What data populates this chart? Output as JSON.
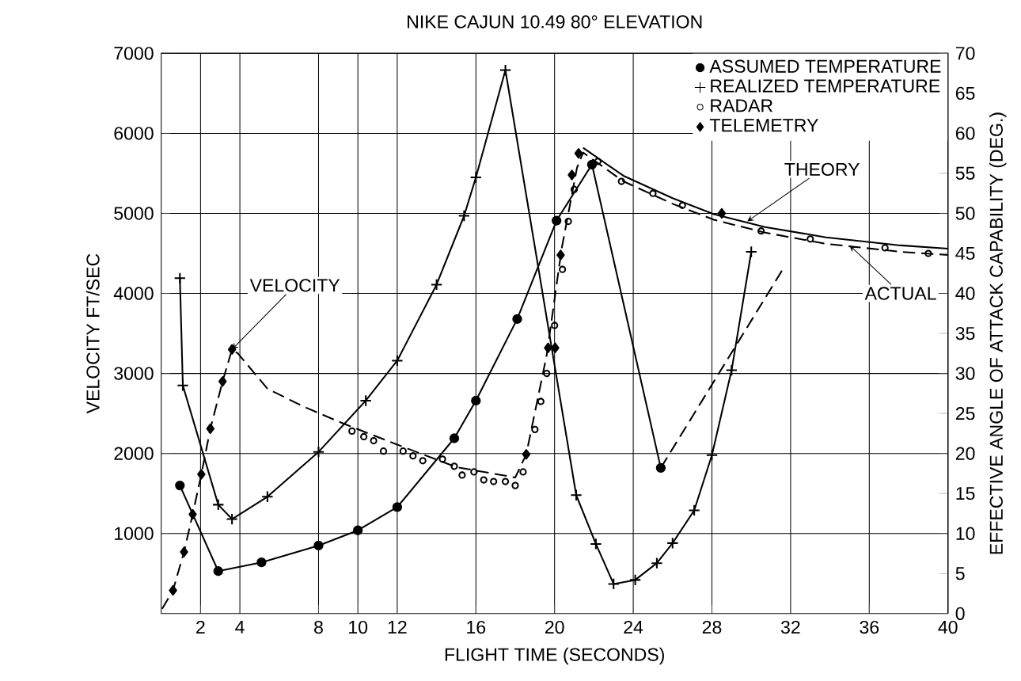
{
  "chart_data": {
    "type": "line",
    "title": "NIKE CAJUN 10.49  80° ELEVATION",
    "xlabel": "FLIGHT TIME (SECONDS)",
    "ylabel": "VELOCITY FT/SEC",
    "y2label": "EFFECTIVE ANGLE OF ATTACK CAPABILITY (DEG.)",
    "xlim": [
      0,
      40
    ],
    "xticks": [
      2,
      4,
      8,
      10,
      12,
      16,
      20,
      24,
      28,
      32,
      36,
      40
    ],
    "ylim": [
      0,
      7000
    ],
    "yticks": [
      1000,
      2000,
      3000,
      4000,
      5000,
      6000,
      7000
    ],
    "y2lim": [
      0,
      70
    ],
    "y2ticks": [
      0,
      5,
      10,
      15,
      20,
      25,
      30,
      35,
      40,
      45,
      50,
      55,
      60,
      65,
      70
    ],
    "grid": true,
    "legend": "top right",
    "annotations": [
      {
        "text": "VELOCITY",
        "x": 3.6,
        "y": 3300
      },
      {
        "text": "THEORY",
        "x": 29.8,
        "y": 4900
      },
      {
        "text": "ACTUAL",
        "x": 35,
        "y": 4600
      }
    ],
    "series": [
      {
        "name": "ASSUMED TEMPERATURE",
        "type": "line",
        "axis": "y2",
        "color": "#000000",
        "marker": "circle",
        "line_style": "solid",
        "x": [
          0.95,
          2.9,
          5.1,
          8,
          10,
          12,
          14.9,
          16,
          18.1,
          20.1,
          21.9,
          25.4
        ],
        "values": [
          16,
          5.3,
          6.4,
          8.5,
          10.4,
          13.3,
          21.9,
          26.6,
          36.8,
          49.1,
          56.1,
          18.2
        ]
      },
      {
        "name": "REALIZED TEMPERATURE",
        "type": "line",
        "axis": "y2",
        "color": "#000000",
        "marker": "cross",
        "line_style": "solid",
        "x": [
          0.95,
          1.1,
          1.9,
          2.9,
          3.6,
          5.4,
          8,
          10.4,
          12,
          14,
          15.4,
          16,
          17.5,
          21.1,
          22.1,
          23,
          24.1,
          25.2,
          26,
          27.1,
          28,
          29,
          30
        ],
        "values": [
          41.9,
          28.5,
          null,
          13.6,
          11.8,
          14.6,
          20.2,
          26.6,
          31.6,
          41.1,
          49.7,
          54.5,
          67.9,
          14.8,
          8.7,
          3.7,
          4.2,
          6.3,
          8.8,
          12.9,
          19.8,
          30.4,
          45.2
        ]
      },
      {
        "name": "RADAR",
        "type": "scatter",
        "axis": "y",
        "color": "#000000",
        "marker": "circle",
        "x": [
          9.7,
          10.3,
          10.8,
          11.3,
          12.3,
          12.8,
          13.3,
          14.3,
          14.9,
          15.3,
          15.9,
          16.4,
          16.9,
          17.5,
          18,
          18.4,
          19,
          19.3,
          19.6,
          20,
          20.4,
          20.7,
          21,
          22.2,
          23.4,
          25,
          26.5,
          30.5,
          33,
          36.8,
          39
        ],
        "values": [
          2280,
          2210,
          2160,
          2030,
          2030,
          1970,
          1910,
          1930,
          1840,
          1730,
          1770,
          1670,
          1650,
          1650,
          1600,
          1770,
          2300,
          2650,
          3000,
          3600,
          4300,
          4900,
          5300,
          5650,
          5400,
          5250,
          5100,
          4780,
          4680,
          4570,
          4500
        ]
      },
      {
        "name": "TELEMETRY",
        "type": "scatter",
        "axis": "y",
        "color": "#000000",
        "marker": "diamond",
        "x": [
          0.6,
          1.16,
          1.6,
          2.04,
          2.5,
          3.12,
          3.6,
          18.56,
          19.67,
          20.03,
          20.31,
          20.88,
          21.22,
          28.5
        ],
        "values": [
          290,
          770,
          1240,
          1740,
          2310,
          2900,
          3300,
          1990,
          3320,
          3320,
          4480,
          5480,
          5750,
          5000
        ]
      },
      {
        "type": "line",
        "axis": "y",
        "color": "#000000",
        "marker": "none",
        "line_style": "dashed",
        "x": [
          0.05,
          0.6,
          1.16,
          1.6,
          2.04,
          2.5,
          3.12,
          3.6,
          3.9,
          5.4,
          7.2,
          9.3,
          11.9,
          15,
          18,
          18.56,
          19.6,
          20.36,
          21.14,
          21.45,
          23.5,
          26,
          28.1,
          30.7,
          33.8,
          37.6,
          40
        ],
        "values": [
          60,
          290,
          770,
          1240,
          1740,
          2310,
          2900,
          3300,
          3250,
          2810,
          2590,
          2370,
          2120,
          1830,
          1700,
          1990,
          3230,
          4560,
          5570,
          5760,
          5400,
          5120,
          4920,
          4760,
          4620,
          4520,
          4480
        ]
      },
      {
        "type": "line",
        "axis": "y",
        "color": "#000000",
        "marker": "none",
        "line_style": "solid",
        "x": [
          21.45,
          23.5,
          26,
          28.1,
          30.7,
          33.8,
          37.6,
          40
        ],
        "values": [
          5820,
          5470,
          5190,
          4990,
          4830,
          4700,
          4600,
          4560
        ]
      },
      {
        "type": "line",
        "axis": "y2",
        "color": "#000000",
        "marker": "none",
        "line_style": "dashed",
        "x": [
          25.4,
          31.6
        ],
        "values": [
          18.2,
          43
        ]
      }
    ]
  }
}
